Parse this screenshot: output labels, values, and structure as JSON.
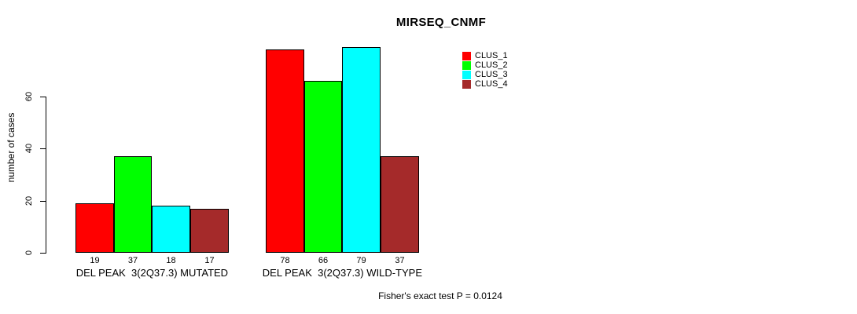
{
  "chart_data": {
    "type": "bar",
    "title": "MIRSEQ_CNMF",
    "xlabel": "",
    "ylabel": "number of cases",
    "ylim": [
      0,
      60
    ],
    "yticks": [
      0,
      20,
      40,
      60
    ],
    "grid": false,
    "legend_position": "right",
    "categories": [
      "DEL PEAK  3(2Q37.3) MUTATED",
      "DEL PEAK  3(2Q37.3) WILD-TYPE"
    ],
    "series": [
      {
        "name": "CLUS_1",
        "color": "#ff0000",
        "values": [
          19,
          78
        ]
      },
      {
        "name": "CLUS_2",
        "color": "#00ff00",
        "values": [
          37,
          66
        ]
      },
      {
        "name": "CLUS_3",
        "color": "#00ffff",
        "values": [
          18,
          79
        ]
      },
      {
        "name": "CLUS_4",
        "color": "#a52a2a",
        "values": [
          17,
          37
        ]
      }
    ],
    "bar_value_labels": [
      [
        19,
        37,
        18,
        17
      ],
      [
        78,
        66,
        79,
        37
      ]
    ],
    "annotation": "Fisher's exact test P = 0.0124"
  },
  "legend": {
    "items": [
      {
        "label": "CLUS_1",
        "color": "#ff0000"
      },
      {
        "label": "CLUS_2",
        "color": "#00ff00"
      },
      {
        "label": "CLUS_3",
        "color": "#00ffff"
      },
      {
        "label": "CLUS_4",
        "color": "#a52a2a"
      }
    ]
  },
  "colors": {
    "axis": "#000000",
    "text": "#000000",
    "background": "#ffffff"
  }
}
